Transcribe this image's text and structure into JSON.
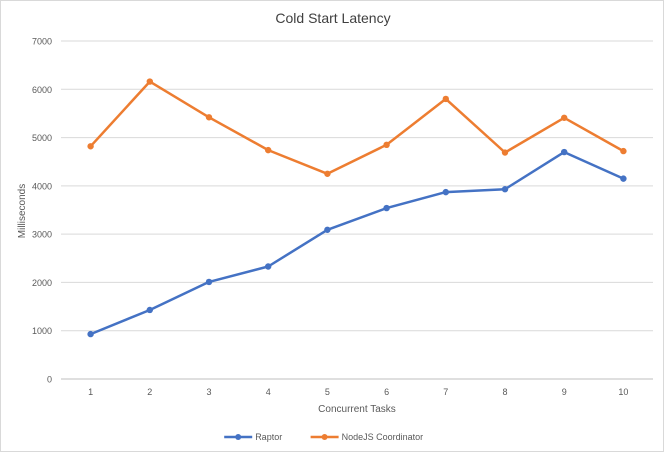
{
  "chart_data": {
    "type": "line",
    "title": "Cold Start Latency",
    "xlabel": "Concurrent Tasks",
    "ylabel": "Milliseconds",
    "x": [
      1,
      2,
      3,
      4,
      5,
      6,
      7,
      8,
      9,
      10
    ],
    "ylim": [
      0,
      7000
    ],
    "yticks": [
      0,
      1000,
      2000,
      3000,
      4000,
      5000,
      6000,
      7000
    ],
    "grid": "horizontal",
    "legend_position": "bottom",
    "series": [
      {
        "name": "Raptor",
        "color": "#4472c4",
        "values": [
          930,
          1430,
          2010,
          2330,
          3090,
          3540,
          3870,
          3930,
          4700,
          4150
        ]
      },
      {
        "name": "NodeJS Coordinator",
        "color": "#ed7d31",
        "values": [
          4820,
          6160,
          5420,
          4740,
          4250,
          4850,
          5800,
          4690,
          5410,
          4720
        ]
      }
    ]
  },
  "colors": {
    "gridline": "#d9d9d9",
    "axis": "#bfbfbf",
    "text": "#595959",
    "title": "#404040"
  }
}
